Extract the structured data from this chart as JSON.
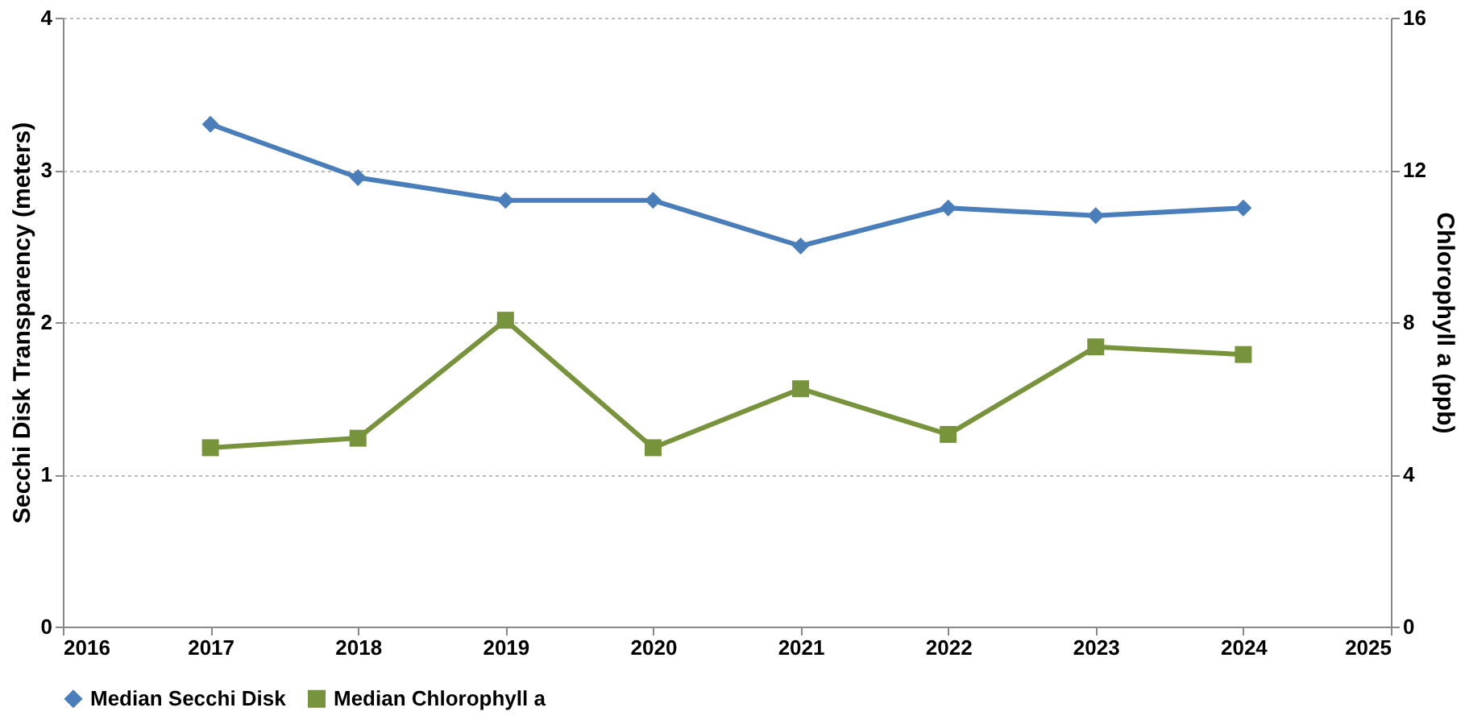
{
  "chart_data": {
    "type": "line",
    "xlabel": null,
    "ylabel": "Secchi Disk Transparency (meters)",
    "y2label": "Chlorophyll a (ppb)",
    "x": [
      2017,
      2018,
      2019,
      2020,
      2021,
      2022,
      2023,
      2024
    ],
    "xlim": [
      2016,
      2025
    ],
    "xticks": [
      2016,
      2017,
      2018,
      2019,
      2020,
      2021,
      2022,
      2023,
      2024,
      2025
    ],
    "ylim": [
      0,
      4
    ],
    "yticks": [
      0,
      1,
      2,
      3,
      4
    ],
    "y2lim": [
      0,
      16
    ],
    "y2ticks": [
      0,
      4,
      8,
      12,
      16
    ],
    "grid": "y",
    "legend": "bottom",
    "line_style": "solid",
    "series": [
      {
        "name": "Median Secchi Disk",
        "color": "#4a7ebb",
        "marker": "diamond",
        "values": [
          3.3,
          2.95,
          2.8,
          2.8,
          2.5,
          2.75,
          2.7,
          2.75
        ]
      },
      {
        "name": "Median Chlorophyll a",
        "color": "#77933c",
        "marker": "square",
        "axis": "y2",
        "values": [
          4.7,
          4.95,
          8.05,
          4.7,
          6.25,
          5.05,
          7.35,
          7.15
        ]
      }
    ]
  }
}
